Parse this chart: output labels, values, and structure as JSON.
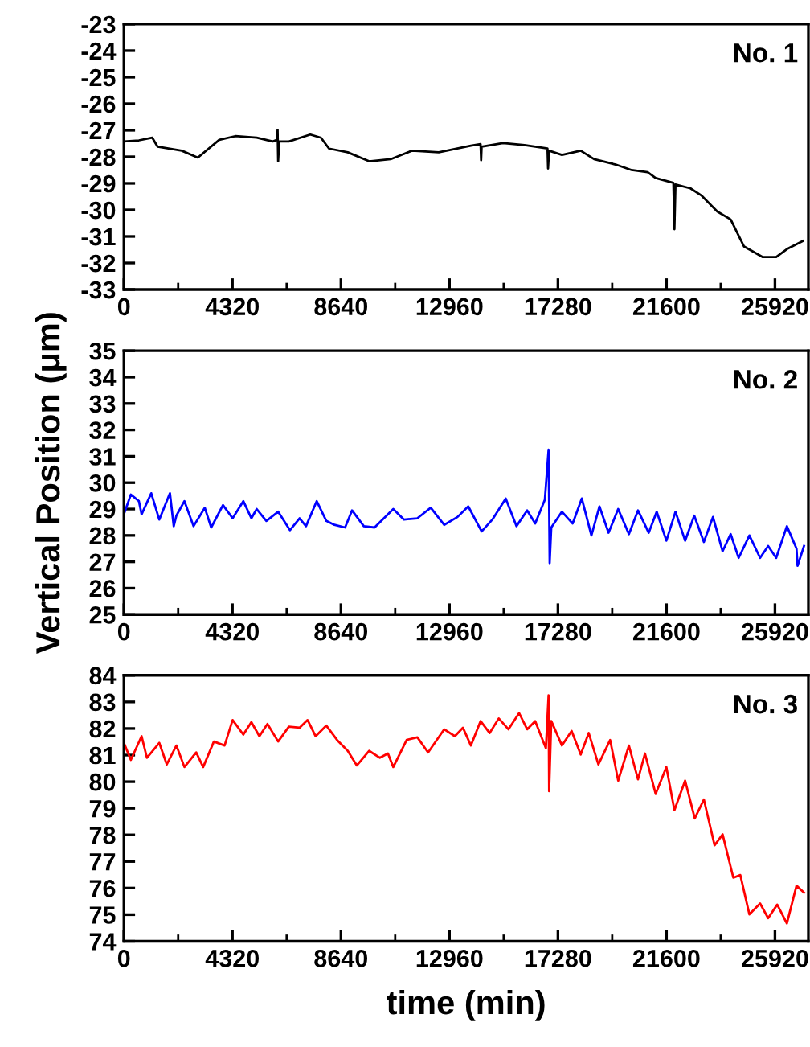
{
  "chart_data": [
    {
      "type": "line",
      "annotations": [
        "No. 1"
      ],
      "xlim": [
        0,
        27250
      ],
      "ylim": [
        -33,
        -23
      ],
      "xticks": [
        0,
        4320,
        8640,
        12960,
        17280,
        21600,
        25920
      ],
      "yticks": [
        -33,
        -32,
        -31,
        -30,
        -29,
        -28,
        -27,
        -26,
        -25,
        -24,
        -23
      ],
      "grid": false,
      "marker": "none",
      "line_style": "solid",
      "series": [
        {
          "color": "#000000",
          "x": [
            0,
            597,
            1130,
            1343,
            2303,
            2942,
            3795,
            4435,
            5287,
            5927,
            6097,
            6119,
            6140,
            6183,
            6567,
            7419,
            7846,
            8166,
            8912,
            9765,
            10617,
            11470,
            12536,
            13815,
            14199,
            14221,
            14242,
            15095,
            15948,
            16864,
            16886,
            16928,
            17440,
            18186,
            18719,
            19572,
            20211,
            20851,
            21171,
            21875,
            21917,
            21960,
            22557,
            22983,
            23623,
            24156,
            24689,
            25435,
            25968,
            26394,
            27034
          ],
          "values": [
            -27.42,
            -27.38,
            -27.28,
            -27.62,
            -27.77,
            -28.03,
            -27.36,
            -27.22,
            -27.28,
            -27.42,
            -27.36,
            -26.98,
            -28.17,
            -27.42,
            -27.42,
            -27.16,
            -27.28,
            -27.69,
            -27.83,
            -28.17,
            -28.09,
            -27.77,
            -27.83,
            -27.58,
            -27.52,
            -28.13,
            -27.62,
            -27.48,
            -27.56,
            -27.69,
            -28.44,
            -27.77,
            -27.93,
            -27.77,
            -28.09,
            -28.29,
            -28.5,
            -28.58,
            -28.8,
            -28.98,
            -30.73,
            -29.04,
            -29.19,
            -29.45,
            -30.06,
            -30.36,
            -31.38,
            -31.78,
            -31.78,
            -31.48,
            -31.17
          ]
        }
      ]
    },
    {
      "type": "line",
      "ylabel": "Vertical Position (μm)",
      "annotations": [
        "No. 2"
      ],
      "xlim": [
        0,
        27250
      ],
      "ylim": [
        25,
        35
      ],
      "xticks": [
        0,
        4320,
        8640,
        12960,
        17280,
        21600,
        25920
      ],
      "yticks": [
        25,
        26,
        27,
        28,
        29,
        30,
        31,
        32,
        33,
        34,
        35
      ],
      "grid": false,
      "marker": "none",
      "line_style": "solid",
      "series": [
        {
          "color": "#0000ff",
          "x": [
            0,
            277,
            597,
            704,
            1088,
            1407,
            1833,
            1983,
            2089,
            2409,
            2772,
            3219,
            3475,
            3944,
            4328,
            4754,
            5074,
            5287,
            5671,
            6140,
            6609,
            6993,
            7249,
            7675,
            8059,
            8379,
            8805,
            9082,
            9551,
            9978,
            10724,
            11150,
            11683,
            12216,
            12749,
            13282,
            13709,
            14242,
            14668,
            15201,
            15628,
            16054,
            16374,
            16758,
            16907,
            16950,
            17014,
            17440,
            17866,
            18229,
            18612,
            18932,
            19294,
            19678,
            20105,
            20467,
            20894,
            21213,
            21597,
            21960,
            22343,
            22706,
            23090,
            23452,
            23836,
            24156,
            24475,
            24902,
            25328,
            25648,
            25968,
            26394,
            26778,
            26820,
            27076
          ],
          "values": [
            28.8,
            29.55,
            29.3,
            28.8,
            29.6,
            28.6,
            29.6,
            28.35,
            28.75,
            29.3,
            28.35,
            29.05,
            28.3,
            29.15,
            28.65,
            29.3,
            28.65,
            29.0,
            28.55,
            28.9,
            28.2,
            28.65,
            28.35,
            29.3,
            28.55,
            28.4,
            28.3,
            28.95,
            28.35,
            28.3,
            29.0,
            28.6,
            28.65,
            29.05,
            28.4,
            28.7,
            29.1,
            28.15,
            28.6,
            29.4,
            28.35,
            28.95,
            28.45,
            29.35,
            31.25,
            26.95,
            28.3,
            28.9,
            28.45,
            29.4,
            28.0,
            29.1,
            28.1,
            29.0,
            28.05,
            28.95,
            28.1,
            28.9,
            27.8,
            28.9,
            27.8,
            28.75,
            27.75,
            28.7,
            27.4,
            28.05,
            27.15,
            28.0,
            27.15,
            27.6,
            27.15,
            28.35,
            27.5,
            26.85,
            27.6
          ]
        }
      ]
    },
    {
      "type": "line",
      "xlabel": "time (min)",
      "annotations": [
        "No. 3"
      ],
      "xlim": [
        0,
        27250
      ],
      "ylim": [
        74,
        84
      ],
      "xticks": [
        0,
        4320,
        8640,
        12960,
        17280,
        21600,
        25920
      ],
      "yticks": [
        74,
        75,
        76,
        77,
        78,
        79,
        80,
        81,
        82,
        83,
        84
      ],
      "grid": false,
      "marker": "none",
      "line_style": "solid",
      "series": [
        {
          "color": "#ff0000",
          "x": [
            0,
            277,
            704,
            917,
            1407,
            1705,
            2089,
            2409,
            2878,
            3155,
            3582,
            4008,
            4328,
            4754,
            5074,
            5394,
            5714,
            6140,
            6567,
            6993,
            7313,
            7633,
            8059,
            8486,
            8912,
            9274,
            9765,
            10191,
            10511,
            10724,
            11257,
            11683,
            12110,
            12749,
            13176,
            13496,
            13815,
            14199,
            14561,
            14924,
            15308,
            15734,
            16054,
            16374,
            16800,
            16907,
            16928,
            17014,
            17440,
            17824,
            18186,
            18506,
            18890,
            19359,
            19678,
            20105,
            20467,
            20744,
            21171,
            21597,
            21917,
            22343,
            22727,
            23090,
            23516,
            23836,
            24262,
            24540,
            24902,
            25328,
            25648,
            26010,
            26394,
            26778,
            27076
          ],
          "values": [
            81.46,
            80.82,
            81.71,
            80.9,
            81.46,
            80.65,
            81.36,
            80.55,
            81.1,
            80.55,
            81.51,
            81.36,
            82.32,
            81.77,
            82.24,
            81.71,
            82.17,
            81.51,
            82.07,
            82.03,
            82.32,
            81.71,
            82.11,
            81.57,
            81.16,
            80.61,
            81.16,
            80.9,
            81.06,
            80.55,
            81.57,
            81.67,
            81.1,
            81.97,
            81.71,
            82.03,
            81.36,
            82.28,
            81.83,
            82.38,
            81.97,
            82.58,
            81.97,
            82.28,
            81.26,
            83.25,
            79.64,
            82.28,
            81.36,
            81.91,
            81.02,
            81.83,
            80.65,
            81.57,
            80.04,
            81.36,
            80.09,
            81.06,
            79.54,
            80.55,
            78.93,
            80.04,
            78.62,
            79.33,
            77.61,
            78.02,
            76.39,
            76.49,
            75.01,
            75.42,
            74.87,
            75.38,
            74.67,
            76.09,
            75.83
          ]
        }
      ]
    }
  ]
}
